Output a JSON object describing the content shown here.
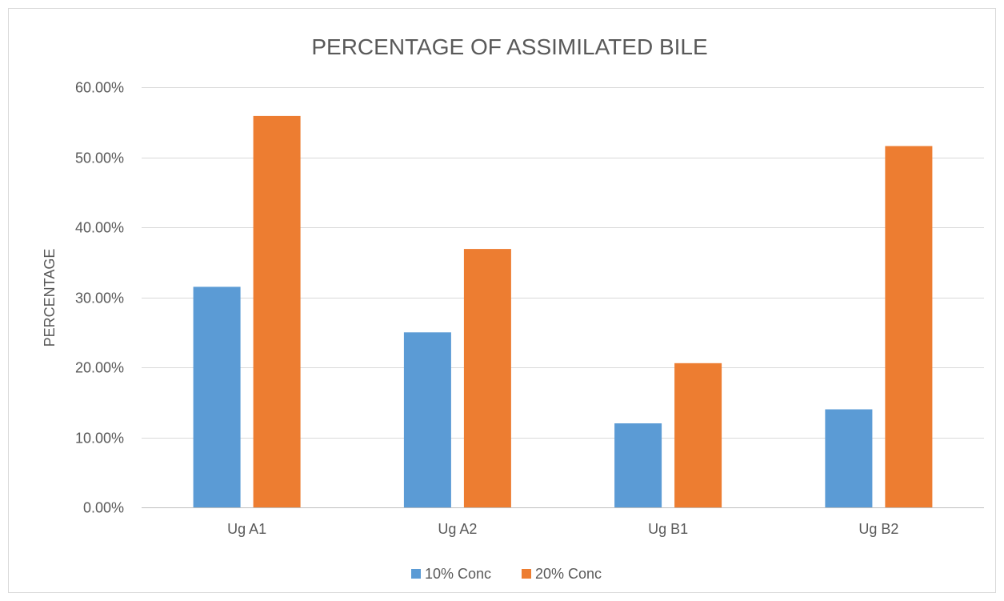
{
  "chart_data": {
    "type": "bar",
    "title": "PERCENTAGE OF ASSIMILATED BILE",
    "xlabel": "",
    "ylabel": "PERCENTAGE",
    "categories": [
      "Ug A1",
      "Ug A2",
      "Ug B1",
      "Ug B2"
    ],
    "series": [
      {
        "name": "10% Conc",
        "color": "#5B9BD5",
        "values": [
          0.315,
          0.25,
          0.12,
          0.14
        ]
      },
      {
        "name": "20% Conc",
        "color": "#ED7D31",
        "values": [
          0.559,
          0.369,
          0.206,
          0.516
        ]
      }
    ],
    "ylim": [
      0,
      0.6
    ],
    "yticks": [
      0,
      0.1,
      0.2,
      0.3,
      0.4,
      0.5,
      0.6
    ],
    "ytick_labels": [
      "0.00%",
      "10.00%",
      "20.00%",
      "30.00%",
      "40.00%",
      "50.00%",
      "60.00%"
    ],
    "grid": true,
    "legend_position": "bottom"
  }
}
